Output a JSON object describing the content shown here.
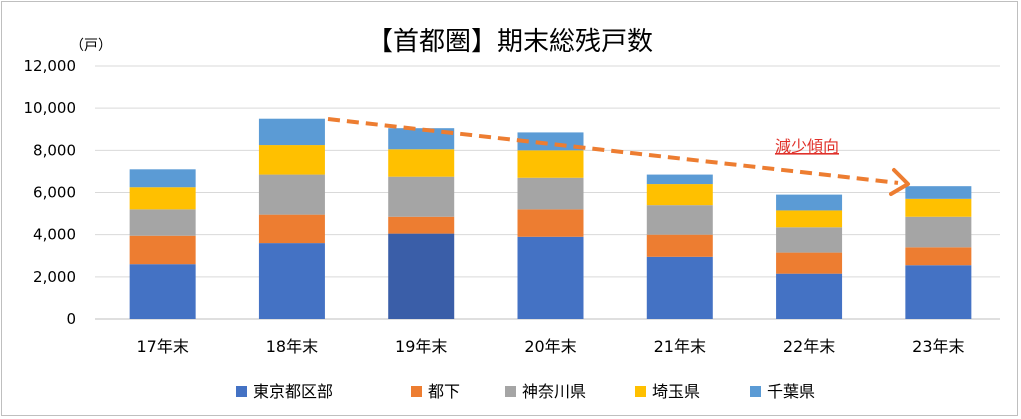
{
  "chart_data": {
    "type": "bar",
    "stacked": true,
    "title": "【首都圏】期末総残戸数",
    "unit_label": "（戸）",
    "categories": [
      "17年末",
      "18年末",
      "19年末",
      "20年末",
      "21年末",
      "22年末",
      "23年末"
    ],
    "ylim": [
      0,
      12000
    ],
    "yticks": [
      0,
      2000,
      4000,
      6000,
      8000,
      10000,
      12000
    ],
    "ytick_labels": [
      "0",
      "2,000",
      "4,000",
      "6,000",
      "8,000",
      "10,000",
      "12,000"
    ],
    "grid": true,
    "legend_position": "bottom",
    "series": [
      {
        "name": "東京都区部",
        "color": "#4472c4",
        "values": [
          2600,
          3600,
          4050,
          3900,
          2950,
          2150,
          2550
        ]
      },
      {
        "name": "都下",
        "color": "#ed7d31",
        "values": [
          1350,
          1350,
          800,
          1300,
          1050,
          1000,
          850
        ]
      },
      {
        "name": "神奈川県",
        "color": "#a5a5a5",
        "values": [
          1250,
          1900,
          1900,
          1500,
          1400,
          1200,
          1450
        ]
      },
      {
        "name": "埼玉県",
        "color": "#ffc000",
        "values": [
          1050,
          1400,
          1300,
          1300,
          1000,
          800,
          850
        ]
      },
      {
        "name": "千葉県",
        "color": "#5b9bd5",
        "values": [
          850,
          1250,
          1000,
          850,
          450,
          750,
          600
        ]
      }
    ],
    "highlight": {
      "category_index": 2,
      "series_index": 0,
      "color": "#3a5ea8"
    },
    "annotation": {
      "text": "減少傾向",
      "color": "#e0312a",
      "arrow_color": "#ed7d31"
    }
  }
}
